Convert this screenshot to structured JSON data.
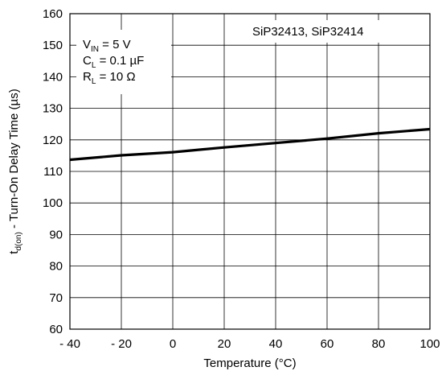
{
  "chart_data": {
    "type": "line",
    "xlabel": "Temperature (°C)",
    "ylabel": {
      "main": "t",
      "sub": "d(on)",
      "rest": " - Turn-On Delay Time (µs)"
    },
    "xlim": [
      -40,
      100
    ],
    "ylim": [
      60,
      160
    ],
    "x_ticks": [
      -40,
      -20,
      0,
      20,
      40,
      60,
      80,
      100
    ],
    "x_tick_labels": [
      "- 40",
      "- 20",
      "0",
      "20",
      "40",
      "60",
      "80",
      "100"
    ],
    "y_ticks": [
      60,
      70,
      80,
      90,
      100,
      110,
      120,
      130,
      140,
      150,
      160
    ],
    "y_tick_labels": [
      "60",
      "70",
      "80",
      "90",
      "100",
      "110",
      "120",
      "130",
      "140",
      "150",
      "160"
    ],
    "grid": true,
    "series": [
      {
        "x": [
          -40,
          -20,
          0,
          20,
          40,
          60,
          80,
          100
        ],
        "y": [
          113.7,
          115.1,
          116.1,
          117.6,
          119.0,
          120.4,
          122.1,
          123.4
        ]
      }
    ],
    "annotation": "SiP32413, SiP32414",
    "conditions": [
      {
        "main": "V",
        "sub": "IN",
        "rest": " = 5 V"
      },
      {
        "main": "C",
        "sub": "L",
        "rest": " = 0.1 µF"
      },
      {
        "main": "R",
        "sub": "L",
        "rest": " = 10 Ω"
      }
    ],
    "line_color": "#000000"
  }
}
